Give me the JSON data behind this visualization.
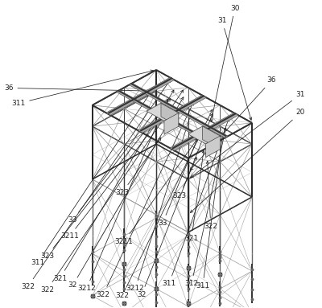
{
  "bg_color": "#ffffff",
  "lc_main": "#3a3a3a",
  "lc_medium": "#666666",
  "lc_light": "#999999",
  "lc_vlight": "#bbbbbb",
  "lc_dark": "#111111",
  "label_color": "#222222",
  "font_size": 6.5,
  "fig_width": 4.0,
  "fig_height": 3.83,
  "ox": 0.485,
  "oy": 0.36,
  "sc": 0.115,
  "sx": 0.866
}
